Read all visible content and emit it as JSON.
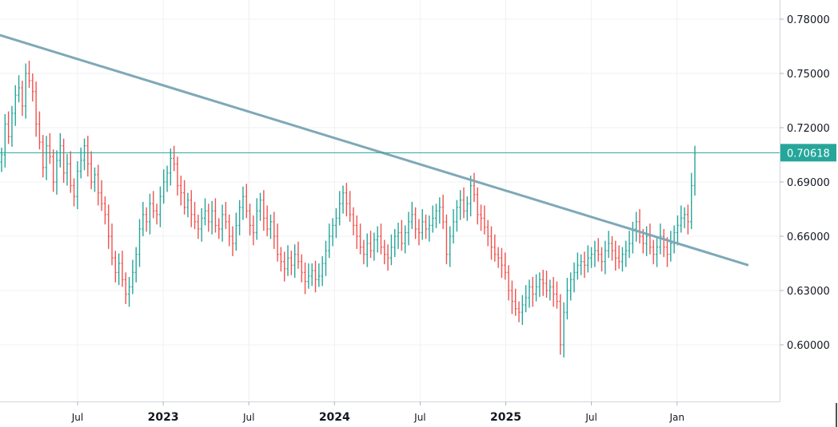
{
  "chart_data": {
    "type": "ohlc",
    "ylim": [
      0.58,
      0.782
    ],
    "y_ticks": [
      "0.78000",
      "0.75000",
      "0.72000",
      "0.69000",
      "0.66000",
      "0.63000",
      "0.60000"
    ],
    "x_labels": [
      {
        "text": "Jul",
        "year": false,
        "date": "2022-07"
      },
      {
        "text": "2023",
        "year": true,
        "date": "2023-01"
      },
      {
        "text": "Jul",
        "year": false,
        "date": "2023-07"
      },
      {
        "text": "2024",
        "year": true,
        "date": "2024-01"
      },
      {
        "text": "Jul",
        "year": false,
        "date": "2024-07"
      },
      {
        "text": "2025",
        "year": true,
        "date": "2025-01"
      },
      {
        "text": "Jul",
        "year": false,
        "date": "2025-07"
      },
      {
        "text": "Jan",
        "year": false,
        "date": "2026-01"
      }
    ],
    "current_price": {
      "label": "0.70618",
      "value": 0.70618
    },
    "trendline": {
      "start": {
        "date": "2022-01",
        "value": 0.7725
      },
      "end": {
        "date": "2026-06",
        "value": 0.644
      }
    },
    "colors": {
      "up": "#26a69a",
      "down": "#ef5350",
      "trendline": "#7fa8b8",
      "price_line": "#26a69a",
      "grid": "#eef0f3"
    },
    "weekly_closes": [
      0.705,
      0.722,
      0.715,
      0.728,
      0.738,
      0.742,
      0.732,
      0.75,
      0.746,
      0.74,
      0.722,
      0.712,
      0.698,
      0.71,
      0.704,
      0.69,
      0.702,
      0.71,
      0.695,
      0.7,
      0.688,
      0.682,
      0.696,
      0.702,
      0.71,
      0.7,
      0.69,
      0.694,
      0.684,
      0.678,
      0.672,
      0.66,
      0.648,
      0.64,
      0.645,
      0.636,
      0.628,
      0.632,
      0.64,
      0.65,
      0.664,
      0.672,
      0.668,
      0.678,
      0.674,
      0.672,
      0.682,
      0.69,
      0.695,
      0.703,
      0.7,
      0.688,
      0.684,
      0.676,
      0.68,
      0.672,
      0.668,
      0.664,
      0.67,
      0.674,
      0.668,
      0.674,
      0.666,
      0.664,
      0.672,
      0.668,
      0.66,
      0.656,
      0.666,
      0.676,
      0.682,
      0.674,
      0.666,
      0.662,
      0.674,
      0.68,
      0.67,
      0.664,
      0.668,
      0.66,
      0.65,
      0.646,
      0.642,
      0.648,
      0.644,
      0.65,
      0.646,
      0.64,
      0.635,
      0.638,
      0.641,
      0.636,
      0.638,
      0.645,
      0.652,
      0.66,
      0.666,
      0.67,
      0.678,
      0.684,
      0.678,
      0.672,
      0.666,
      0.66,
      0.654,
      0.65,
      0.656,
      0.652,
      0.658,
      0.66,
      0.654,
      0.65,
      0.648,
      0.654,
      0.66,
      0.662,
      0.656,
      0.662,
      0.668,
      0.672,
      0.664,
      0.662,
      0.668,
      0.664,
      0.666,
      0.67,
      0.674,
      0.676,
      0.668,
      0.65,
      0.66,
      0.668,
      0.676,
      0.68,
      0.674,
      0.678,
      0.688,
      0.683,
      0.672,
      0.67,
      0.665,
      0.66,
      0.654,
      0.65,
      0.648,
      0.644,
      0.64,
      0.63,
      0.624,
      0.62,
      0.618,
      0.622,
      0.626,
      0.632,
      0.628,
      0.632,
      0.636,
      0.634,
      0.63,
      0.632,
      0.628,
      0.624,
      0.6,
      0.618,
      0.63,
      0.636,
      0.64,
      0.644,
      0.646,
      0.644,
      0.648,
      0.65,
      0.652,
      0.65,
      0.646,
      0.652,
      0.656,
      0.652,
      0.648,
      0.646,
      0.65,
      0.652,
      0.656,
      0.664,
      0.668,
      0.66,
      0.656,
      0.66,
      0.654,
      0.65,
      0.654,
      0.66,
      0.654,
      0.65,
      0.656,
      0.662,
      0.666,
      0.67,
      0.672,
      0.668,
      0.688,
      0.706
    ]
  }
}
